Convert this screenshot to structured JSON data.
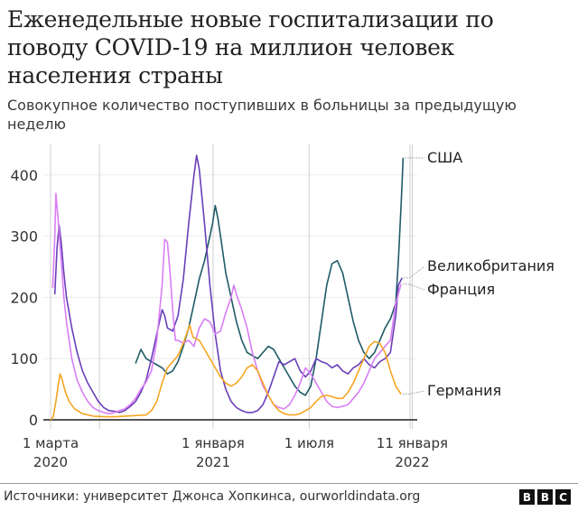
{
  "header": {
    "title": "Еженедельные новые госпитализации по поводу COVID-19 на миллион человек населения страны",
    "subtitle": "Совокупное количество поступивших в больницы за предыдущую неделю"
  },
  "footer": {
    "source": "Источники: университет Джонса Хопкинса, ourworldindata.org",
    "logo_letters": [
      "B",
      "B",
      "C"
    ]
  },
  "chart_data": {
    "type": "line",
    "title": "Еженедельные новые госпитализации по поводу COVID-19 на миллион человек населения страны",
    "subtitle": "Совокупное количество поступивших в больницы за предыдущую неделю",
    "xlabel": "",
    "ylabel": "",
    "ylim": [
      0,
      430
    ],
    "y_ticks": [
      0,
      100,
      200,
      300,
      400
    ],
    "x_ticks": [
      {
        "label": "1 марта",
        "sub": "2020",
        "date": "2020-03-01"
      },
      {
        "label": "1 января",
        "sub": "2021",
        "date": "2021-01-01"
      },
      {
        "label": "1 июля",
        "sub": "",
        "date": "2021-07-01"
      },
      {
        "label": "11 января",
        "sub": "2022",
        "date": "2022-01-11"
      }
    ],
    "grid": true,
    "legend_position": "right, inline labels at line ends",
    "x_unit": "days since 2020-03-01",
    "series": [
      {
        "name": "США",
        "color": "#1e5b67",
        "points": [
          [
            160,
            92
          ],
          [
            170,
            115
          ],
          [
            180,
            100
          ],
          [
            190,
            95
          ],
          [
            200,
            90
          ],
          [
            210,
            85
          ],
          [
            220,
            75
          ],
          [
            230,
            80
          ],
          [
            240,
            95
          ],
          [
            250,
            120
          ],
          [
            260,
            150
          ],
          [
            270,
            190
          ],
          [
            280,
            230
          ],
          [
            290,
            260
          ],
          [
            300,
            300
          ],
          [
            305,
            320
          ],
          [
            310,
            350
          ],
          [
            315,
            330
          ],
          [
            320,
            300
          ],
          [
            330,
            240
          ],
          [
            340,
            200
          ],
          [
            350,
            160
          ],
          [
            360,
            130
          ],
          [
            370,
            110
          ],
          [
            380,
            105
          ],
          [
            390,
            100
          ],
          [
            400,
            110
          ],
          [
            410,
            120
          ],
          [
            420,
            115
          ],
          [
            430,
            100
          ],
          [
            440,
            85
          ],
          [
            450,
            70
          ],
          [
            460,
            55
          ],
          [
            470,
            45
          ],
          [
            480,
            40
          ],
          [
            490,
            55
          ],
          [
            500,
            100
          ],
          [
            510,
            160
          ],
          [
            520,
            220
          ],
          [
            530,
            255
          ],
          [
            540,
            260
          ],
          [
            550,
            240
          ],
          [
            560,
            200
          ],
          [
            570,
            160
          ],
          [
            580,
            130
          ],
          [
            590,
            110
          ],
          [
            600,
            100
          ],
          [
            610,
            110
          ],
          [
            620,
            130
          ],
          [
            630,
            150
          ],
          [
            640,
            165
          ],
          [
            650,
            190
          ],
          [
            655,
            260
          ],
          [
            660,
            350
          ],
          [
            664,
            428
          ]
        ]
      },
      {
        "name": "Великобритания",
        "color": "#6a3fb8",
        "points": [
          [
            8,
            205
          ],
          [
            12,
            280
          ],
          [
            16,
            318
          ],
          [
            20,
            290
          ],
          [
            25,
            240
          ],
          [
            30,
            200
          ],
          [
            40,
            150
          ],
          [
            50,
            110
          ],
          [
            60,
            80
          ],
          [
            70,
            60
          ],
          [
            80,
            45
          ],
          [
            90,
            30
          ],
          [
            100,
            20
          ],
          [
            110,
            15
          ],
          [
            120,
            14
          ],
          [
            130,
            12
          ],
          [
            140,
            15
          ],
          [
            150,
            22
          ],
          [
            160,
            30
          ],
          [
            170,
            45
          ],
          [
            180,
            65
          ],
          [
            190,
            100
          ],
          [
            200,
            140
          ],
          [
            210,
            180
          ],
          [
            215,
            170
          ],
          [
            220,
            150
          ],
          [
            230,
            145
          ],
          [
            240,
            170
          ],
          [
            250,
            230
          ],
          [
            260,
            320
          ],
          [
            270,
            400
          ],
          [
            275,
            432
          ],
          [
            280,
            410
          ],
          [
            290,
            320
          ],
          [
            300,
            220
          ],
          [
            310,
            140
          ],
          [
            320,
            80
          ],
          [
            330,
            50
          ],
          [
            340,
            30
          ],
          [
            350,
            20
          ],
          [
            360,
            15
          ],
          [
            370,
            12
          ],
          [
            380,
            12
          ],
          [
            390,
            15
          ],
          [
            400,
            25
          ],
          [
            410,
            45
          ],
          [
            420,
            70
          ],
          [
            430,
            95
          ],
          [
            440,
            90
          ],
          [
            450,
            95
          ],
          [
            460,
            100
          ],
          [
            470,
            80
          ],
          [
            480,
            70
          ],
          [
            490,
            80
          ],
          [
            500,
            100
          ],
          [
            510,
            95
          ],
          [
            520,
            92
          ],
          [
            530,
            85
          ],
          [
            540,
            90
          ],
          [
            550,
            80
          ],
          [
            560,
            75
          ],
          [
            570,
            85
          ],
          [
            580,
            90
          ],
          [
            590,
            100
          ],
          [
            600,
            90
          ],
          [
            610,
            85
          ],
          [
            620,
            95
          ],
          [
            630,
            100
          ],
          [
            640,
            110
          ],
          [
            650,
            170
          ],
          [
            655,
            220
          ],
          [
            662,
            232
          ]
        ]
      },
      {
        "name": "Франция",
        "color": "#d97ef5",
        "points": [
          [
            4,
            215
          ],
          [
            8,
            300
          ],
          [
            10,
            370
          ],
          [
            14,
            330
          ],
          [
            20,
            260
          ],
          [
            25,
            200
          ],
          [
            30,
            160
          ],
          [
            40,
            100
          ],
          [
            50,
            65
          ],
          [
            60,
            45
          ],
          [
            70,
            30
          ],
          [
            80,
            20
          ],
          [
            90,
            15
          ],
          [
            100,
            12
          ],
          [
            110,
            10
          ],
          [
            120,
            12
          ],
          [
            130,
            15
          ],
          [
            140,
            18
          ],
          [
            150,
            25
          ],
          [
            160,
            35
          ],
          [
            170,
            50
          ],
          [
            180,
            62
          ],
          [
            190,
            80
          ],
          [
            200,
            130
          ],
          [
            210,
            220
          ],
          [
            215,
            295
          ],
          [
            220,
            290
          ],
          [
            225,
            240
          ],
          [
            230,
            180
          ],
          [
            235,
            130
          ],
          [
            240,
            130
          ],
          [
            250,
            125
          ],
          [
            260,
            130
          ],
          [
            270,
            120
          ],
          [
            280,
            150
          ],
          [
            290,
            165
          ],
          [
            300,
            160
          ],
          [
            310,
            140
          ],
          [
            320,
            145
          ],
          [
            330,
            175
          ],
          [
            340,
            200
          ],
          [
            345,
            220
          ],
          [
            350,
            205
          ],
          [
            360,
            180
          ],
          [
            370,
            150
          ],
          [
            380,
            110
          ],
          [
            390,
            80
          ],
          [
            400,
            55
          ],
          [
            410,
            40
          ],
          [
            420,
            25
          ],
          [
            430,
            20
          ],
          [
            440,
            18
          ],
          [
            450,
            25
          ],
          [
            460,
            40
          ],
          [
            470,
            60
          ],
          [
            480,
            85
          ],
          [
            490,
            75
          ],
          [
            500,
            60
          ],
          [
            510,
            45
          ],
          [
            520,
            30
          ],
          [
            530,
            22
          ],
          [
            540,
            20
          ],
          [
            550,
            22
          ],
          [
            560,
            25
          ],
          [
            570,
            35
          ],
          [
            580,
            45
          ],
          [
            590,
            60
          ],
          [
            600,
            80
          ],
          [
            610,
            100
          ],
          [
            620,
            110
          ],
          [
            630,
            120
          ],
          [
            640,
            130
          ],
          [
            650,
            190
          ],
          [
            660,
            222
          ]
        ]
      },
      {
        "name": "Германия",
        "color": "#f5a623",
        "points": [
          [
            0,
            0
          ],
          [
            5,
            5
          ],
          [
            10,
            30
          ],
          [
            15,
            60
          ],
          [
            18,
            75
          ],
          [
            22,
            65
          ],
          [
            28,
            45
          ],
          [
            35,
            30
          ],
          [
            45,
            18
          ],
          [
            60,
            10
          ],
          [
            80,
            6
          ],
          [
            100,
            5
          ],
          [
            120,
            5
          ],
          [
            140,
            6
          ],
          [
            160,
            7
          ],
          [
            180,
            8
          ],
          [
            190,
            15
          ],
          [
            200,
            30
          ],
          [
            210,
            60
          ],
          [
            220,
            85
          ],
          [
            230,
            95
          ],
          [
            240,
            105
          ],
          [
            250,
            125
          ],
          [
            260,
            150
          ],
          [
            262,
            155
          ],
          [
            268,
            135
          ],
          [
            275,
            132
          ],
          [
            280,
            130
          ],
          [
            290,
            115
          ],
          [
            300,
            100
          ],
          [
            310,
            85
          ],
          [
            320,
            70
          ],
          [
            330,
            60
          ],
          [
            340,
            55
          ],
          [
            350,
            60
          ],
          [
            360,
            70
          ],
          [
            370,
            85
          ],
          [
            380,
            90
          ],
          [
            390,
            80
          ],
          [
            400,
            60
          ],
          [
            410,
            40
          ],
          [
            420,
            25
          ],
          [
            430,
            15
          ],
          [
            440,
            10
          ],
          [
            450,
            8
          ],
          [
            460,
            8
          ],
          [
            470,
            10
          ],
          [
            480,
            15
          ],
          [
            490,
            20
          ],
          [
            500,
            30
          ],
          [
            510,
            38
          ],
          [
            520,
            40
          ],
          [
            530,
            38
          ],
          [
            540,
            35
          ],
          [
            550,
            35
          ],
          [
            560,
            45
          ],
          [
            570,
            60
          ],
          [
            580,
            80
          ],
          [
            590,
            100
          ],
          [
            600,
            120
          ],
          [
            610,
            128
          ],
          [
            620,
            125
          ],
          [
            630,
            110
          ],
          [
            640,
            80
          ],
          [
            650,
            55
          ],
          [
            660,
            42
          ]
        ]
      }
    ]
  }
}
